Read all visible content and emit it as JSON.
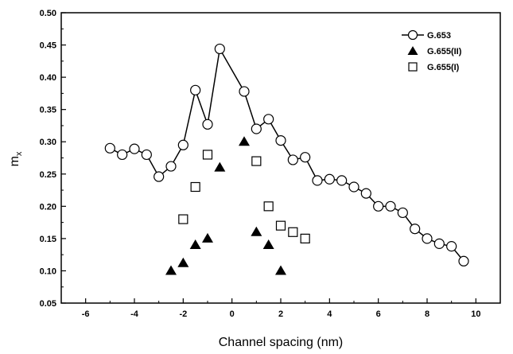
{
  "chart_data": {
    "type": "scatter",
    "xlabel": "Channel spacing (nm)",
    "ylabel": "m",
    "ylabel_sub": "x",
    "xlim": [
      -7,
      11
    ],
    "ylim": [
      0.05,
      0.5
    ],
    "xticks": [
      -6,
      -4,
      -2,
      0,
      2,
      4,
      6,
      8,
      10
    ],
    "yticks": [
      0.05,
      0.1,
      0.15,
      0.2,
      0.25,
      0.3,
      0.35,
      0.4,
      0.45,
      0.5
    ],
    "legend_position": "top-right",
    "series": [
      {
        "name": "G.653",
        "marker": "circle-open",
        "line": true,
        "points": [
          [
            -5.0,
            0.29
          ],
          [
            -4.5,
            0.28
          ],
          [
            -4.0,
            0.289
          ],
          [
            -3.5,
            0.28
          ],
          [
            -3.0,
            0.246
          ],
          [
            -2.5,
            0.262
          ],
          [
            -2.0,
            0.295
          ],
          [
            -1.5,
            0.38
          ],
          [
            -1.0,
            0.327
          ],
          [
            -0.5,
            0.444
          ],
          [
            0.5,
            0.378
          ],
          [
            1.0,
            0.32
          ],
          [
            1.5,
            0.335
          ],
          [
            2.0,
            0.302
          ],
          [
            2.5,
            0.272
          ],
          [
            3.0,
            0.276
          ],
          [
            3.5,
            0.24
          ],
          [
            4.0,
            0.242
          ],
          [
            4.5,
            0.24
          ],
          [
            5.0,
            0.23
          ],
          [
            5.5,
            0.22
          ],
          [
            6.0,
            0.2
          ],
          [
            6.5,
            0.2
          ],
          [
            7.0,
            0.19
          ],
          [
            7.5,
            0.165
          ],
          [
            8.0,
            0.15
          ],
          [
            8.5,
            0.142
          ],
          [
            9.0,
            0.138
          ],
          [
            9.5,
            0.115
          ]
        ]
      },
      {
        "name": "G.655(II)",
        "marker": "triangle-filled",
        "line": false,
        "points": [
          [
            -2.5,
            0.1
          ],
          [
            -2.0,
            0.112
          ],
          [
            -1.5,
            0.14
          ],
          [
            -1.0,
            0.15
          ],
          [
            -0.5,
            0.26
          ],
          [
            0.5,
            0.3
          ],
          [
            1.0,
            0.16
          ],
          [
            1.5,
            0.14
          ],
          [
            2.0,
            0.1
          ]
        ]
      },
      {
        "name": "G.655(I)",
        "marker": "square-open",
        "line": false,
        "points": [
          [
            -2.0,
            0.18
          ],
          [
            -1.5,
            0.23
          ],
          [
            -1.0,
            0.28
          ],
          [
            1.0,
            0.27
          ],
          [
            1.5,
            0.2
          ],
          [
            2.0,
            0.17
          ],
          [
            2.5,
            0.16
          ],
          [
            3.0,
            0.15
          ]
        ]
      }
    ]
  }
}
